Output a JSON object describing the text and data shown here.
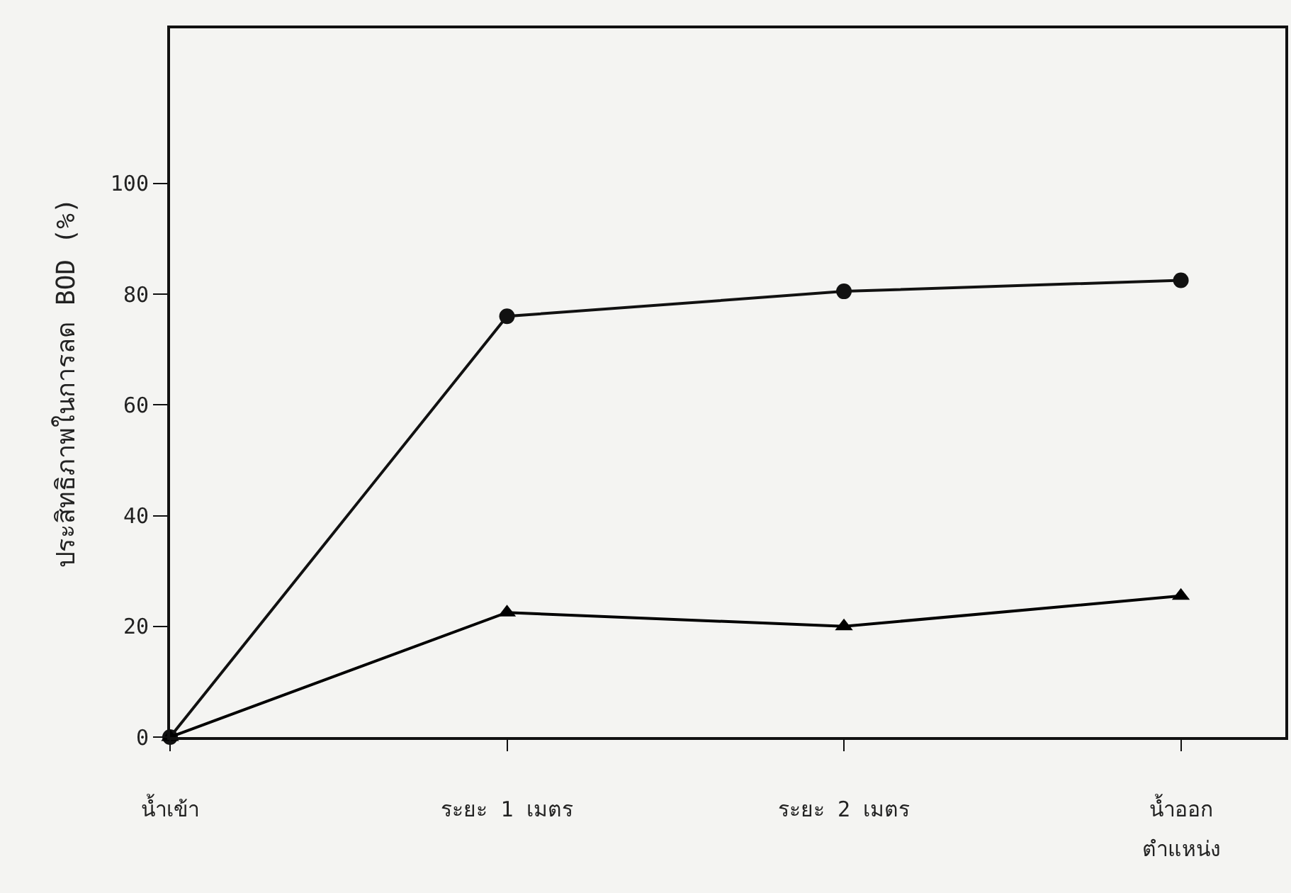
{
  "chart_data": {
    "type": "line",
    "xlabel": "ตำแหน่ง",
    "ylabel": "ประสิทธิภาพในการลด BOD (%)",
    "categories": [
      "น้ำเข้า",
      "ระยะ 1 เมตร",
      "ระยะ 2 เมตร",
      "น้ำออก"
    ],
    "series": [
      {
        "color": "#111111",
        "marker": "circle",
        "values": [
          0,
          76,
          80.5,
          82.5
        ]
      },
      {
        "color": "#000000",
        "marker": "triangle",
        "values": [
          0,
          22.5,
          20,
          25.5
        ]
      }
    ],
    "ylim": [
      0,
      128
    ],
    "yticks": [
      0,
      20,
      40,
      60,
      80,
      100
    ],
    "grid": false,
    "line_style": "solid"
  }
}
